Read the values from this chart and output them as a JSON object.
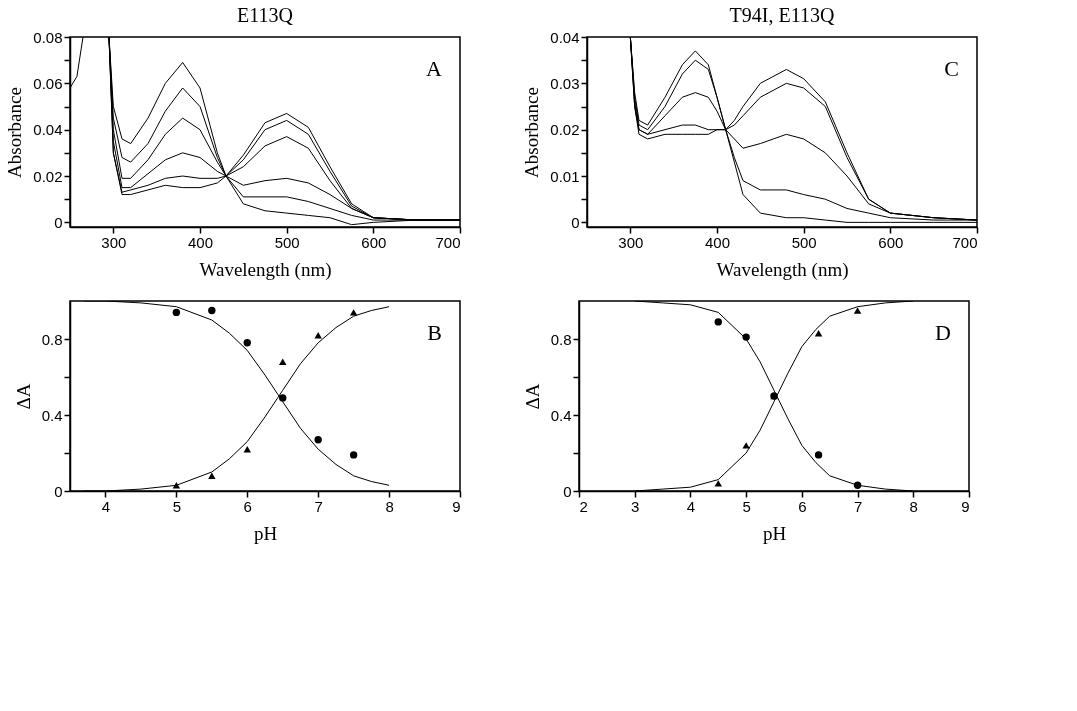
{
  "chart_data": [
    {
      "type": "line",
      "title": "E113Q",
      "xlabel": "Wavelength (nm)",
      "ylabel": "Absorbance",
      "annotations": [
        "A"
      ],
      "grid": false,
      "xlim": [
        250,
        700
      ],
      "xticks": [
        300,
        400,
        500,
        600,
        700
      ],
      "ylim": [
        -0.002,
        0.08
      ],
      "yticks": [
        0,
        {
          "value": 0.01,
          "label": null
        },
        0.02,
        {
          "value": 0.03,
          "label": null
        },
        0.04,
        {
          "value": 0.05,
          "label": null
        },
        0.06,
        {
          "value": 0.07,
          "label": null
        },
        0.08
      ],
      "x": [
        295,
        300,
        310,
        320,
        340,
        360,
        380,
        400,
        420,
        430,
        450,
        475,
        500,
        525,
        550,
        575,
        600,
        650,
        700
      ],
      "series": [
        {
          "color": "#000000",
          "x": [
            250,
            258,
            265,
            280,
            295,
            300,
            310,
            320,
            340,
            360,
            380,
            400,
            420,
            430,
            450,
            475,
            500,
            525,
            550,
            575,
            600,
            650,
            700
          ],
          "values": [
            0.058,
            0.063,
            0.08,
            null,
            0.08,
            0.05,
            0.036,
            0.034,
            0.045,
            0.06,
            0.069,
            0.058,
            0.03,
            0.02,
            0.008,
            0.005,
            0.004,
            0.003,
            0.002,
            -0.001,
            0.0,
            0.001,
            0.001
          ]
        },
        {
          "color": "#000000",
          "values": [
            0.08,
            0.045,
            0.028,
            0.026,
            0.034,
            0.048,
            0.058,
            0.05,
            0.028,
            0.02,
            0.011,
            0.011,
            0.011,
            0.009,
            0.006,
            0.003,
            0.001,
            0.001,
            0.001
          ]
        },
        {
          "color": "#000000",
          "values": [
            0.08,
            0.04,
            0.019,
            0.019,
            0.027,
            0.038,
            0.045,
            0.04,
            0.026,
            0.02,
            0.016,
            0.018,
            0.019,
            0.017,
            0.012,
            0.006,
            0.002,
            0.001,
            0.001
          ]
        },
        {
          "color": "#000000",
          "values": [
            0.08,
            0.035,
            0.015,
            0.015,
            0.021,
            0.027,
            0.03,
            0.028,
            0.022,
            0.02,
            0.024,
            0.033,
            0.037,
            0.032,
            0.018,
            0.006,
            0.002,
            0.001,
            0.001
          ]
        },
        {
          "color": "#000000",
          "values": [
            0.08,
            0.03,
            0.013,
            0.014,
            0.016,
            0.019,
            0.02,
            0.019,
            0.019,
            0.02,
            0.027,
            0.04,
            0.044,
            0.038,
            0.022,
            0.007,
            0.002,
            0.001,
            0.001
          ]
        },
        {
          "color": "#000000",
          "values": [
            0.08,
            0.03,
            0.012,
            0.012,
            0.014,
            0.016,
            0.015,
            0.015,
            0.017,
            0.02,
            0.029,
            0.043,
            0.047,
            0.041,
            0.024,
            0.008,
            0.002,
            0.001,
            0.001
          ]
        }
      ]
    },
    {
      "type": "line",
      "title": "T94I, E113Q",
      "xlabel": "Wavelength (nm)",
      "ylabel": "Absorbance",
      "annotations": [
        "C"
      ],
      "grid": false,
      "xlim": [
        250,
        700
      ],
      "xticks": [
        300,
        400,
        500,
        600,
        700
      ],
      "ylim": [
        -0.001,
        0.04
      ],
      "yticks": [
        0,
        {
          "value": 0.005,
          "label": null
        },
        0.01,
        {
          "value": 0.015,
          "label": null
        },
        0.02,
        {
          "value": 0.025,
          "label": null
        },
        0.03,
        {
          "value": 0.035,
          "label": null
        },
        0.04
      ],
      "x": [
        300,
        305,
        310,
        320,
        340,
        360,
        375,
        390,
        400,
        410,
        420,
        430,
        450,
        480,
        500,
        525,
        550,
        575,
        600,
        650,
        700
      ],
      "series": [
        {
          "color": "#000000",
          "values": [
            0.04,
            0.028,
            0.022,
            0.021,
            0.027,
            0.034,
            0.037,
            0.034,
            0.027,
            0.02,
            0.013,
            0.006,
            0.002,
            0.001,
            0.001,
            0.0005,
            0.0,
            0.0,
            0.0,
            0.0,
            0.0
          ]
        },
        {
          "color": "#000000",
          "values": [
            0.04,
            0.027,
            0.021,
            0.02,
            0.025,
            0.032,
            0.035,
            0.033,
            0.027,
            0.02,
            0.014,
            0.009,
            0.007,
            0.007,
            0.006,
            0.005,
            0.003,
            0.002,
            0.001,
            0.0005,
            0.0005
          ]
        },
        {
          "color": "#000000",
          "values": [
            0.04,
            0.026,
            0.02,
            0.019,
            0.023,
            0.027,
            0.028,
            0.027,
            0.024,
            0.02,
            0.018,
            0.016,
            0.017,
            0.019,
            0.018,
            0.015,
            0.01,
            0.004,
            0.002,
            0.001,
            0.0005
          ]
        },
        {
          "color": "#000000",
          "values": [
            0.04,
            0.025,
            0.02,
            0.019,
            0.02,
            0.021,
            0.021,
            0.02,
            0.02,
            0.02,
            0.021,
            0.023,
            0.027,
            0.03,
            0.029,
            0.025,
            0.014,
            0.005,
            0.002,
            0.001,
            0.0005
          ]
        },
        {
          "color": "#000000",
          "values": [
            0.04,
            0.025,
            0.019,
            0.018,
            0.019,
            0.019,
            0.019,
            0.019,
            0.02,
            0.02,
            0.022,
            0.025,
            0.03,
            0.033,
            0.031,
            0.026,
            0.015,
            0.005,
            0.002,
            0.001,
            0.0005
          ]
        }
      ]
    },
    {
      "type": "scatter",
      "xlabel": "pH",
      "ylabel": "ΔA",
      "annotations": [
        "B"
      ],
      "grid": false,
      "xlim": [
        3.5,
        9
      ],
      "xticks": [
        4,
        5,
        6,
        7,
        8,
        9
      ],
      "ylim": [
        0,
        1
      ],
      "yticks": [
        0,
        {
          "value": 0.2,
          "label": null
        },
        0.4,
        {
          "value": 0.6,
          "label": null
        },
        0.8
      ],
      "x": [
        5,
        5.5,
        6,
        6.5,
        7,
        7.5
      ],
      "series": [
        {
          "color": "#000000",
          "marker": "circle",
          "values": [
            0.94,
            0.95,
            0.78,
            0.49,
            0.27,
            0.19
          ]
        },
        {
          "color": "#000000",
          "marker": "triangle",
          "values": [
            0.03,
            0.08,
            0.22,
            0.68,
            0.82,
            0.94
          ]
        },
        {
          "type": "line",
          "color": "#000000",
          "x": [
            3.7,
            4,
            4.5,
            5,
            5.5,
            5.75,
            6,
            6.25,
            6.5,
            6.75,
            7,
            7.25,
            7.5,
            7.75,
            8
          ],
          "values": [
            1.0,
            1.0,
            0.99,
            0.97,
            0.9,
            0.83,
            0.74,
            0.61,
            0.47,
            0.33,
            0.22,
            0.14,
            0.08,
            0.05,
            0.03
          ]
        },
        {
          "type": "line",
          "color": "#000000",
          "x": [
            3.7,
            4,
            4.5,
            5,
            5.5,
            5.75,
            6,
            6.25,
            6.5,
            6.75,
            7,
            7.25,
            7.5,
            7.75,
            8
          ],
          "values": [
            0.0,
            0.0,
            0.01,
            0.03,
            0.1,
            0.17,
            0.26,
            0.39,
            0.53,
            0.67,
            0.78,
            0.86,
            0.92,
            0.95,
            0.97
          ]
        }
      ]
    },
    {
      "type": "scatter",
      "xlabel": "pH",
      "ylabel": "ΔA",
      "annotations": [
        "D"
      ],
      "grid": false,
      "xlim": [
        2,
        9
      ],
      "xticks": [
        2,
        3,
        4,
        5,
        6,
        7,
        8,
        9
      ],
      "ylim": [
        0,
        1
      ],
      "yticks": [
        0,
        {
          "value": 0.2,
          "label": null
        },
        0.4,
        {
          "value": 0.6,
          "label": null
        },
        0.8
      ],
      "x": [
        4.5,
        5,
        5.5,
        6.3,
        7
      ],
      "series": [
        {
          "color": "#000000",
          "marker": "circle",
          "values": [
            0.89,
            0.81,
            0.5,
            0.19,
            0.03
          ]
        },
        {
          "color": "#000000",
          "marker": "triangle",
          "values": [
            0.04,
            0.24,
            0.5,
            0.83,
            0.95
          ]
        },
        {
          "type": "line",
          "color": "#000000",
          "x": [
            3,
            3.5,
            4,
            4.5,
            5,
            5.25,
            5.5,
            5.75,
            6,
            6.25,
            6.5,
            7,
            7.5,
            8
          ],
          "values": [
            1.0,
            0.99,
            0.98,
            0.94,
            0.8,
            0.68,
            0.53,
            0.38,
            0.24,
            0.15,
            0.08,
            0.03,
            0.01,
            0.0
          ]
        },
        {
          "type": "line",
          "color": "#000000",
          "x": [
            3,
            3.5,
            4,
            4.5,
            5,
            5.25,
            5.5,
            5.75,
            6,
            6.25,
            6.5,
            7,
            7.5,
            8
          ],
          "values": [
            0.0,
            0.01,
            0.02,
            0.06,
            0.2,
            0.32,
            0.47,
            0.62,
            0.76,
            0.85,
            0.92,
            0.97,
            0.99,
            1.0
          ]
        }
      ]
    }
  ]
}
